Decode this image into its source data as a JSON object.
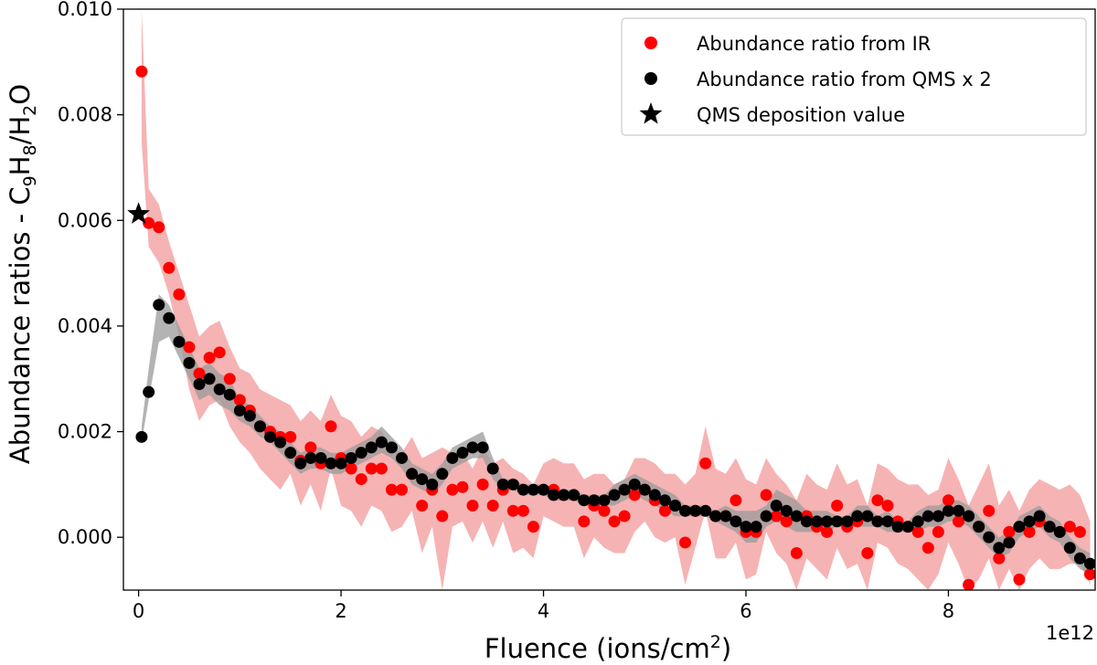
{
  "chart_data": {
    "type": "scatter",
    "title": "",
    "xlabel": "Fluence (ions/cm²)",
    "xlabel_base": "Fluence (ions/cm",
    "xlabel_sup": "2",
    "xlabel_close": ")",
    "ylabel": "Abundance ratios - C9H8/H2O",
    "ylabel_parts": {
      "prefix": "Abundance ratios - C",
      "s1": "9",
      "m1": "H",
      "s2": "8",
      "m2": "/H",
      "s3": "2",
      "suffix": "O"
    },
    "x_multiplier_label": "1e12",
    "xlim": [
      -0.15,
      9.45
    ],
    "ylim": [
      -0.001,
      0.01
    ],
    "xticks": [
      0,
      2,
      4,
      6,
      8
    ],
    "xtick_labels": [
      "0",
      "2",
      "4",
      "6",
      "8"
    ],
    "yticks": [
      0.0,
      0.002,
      0.004,
      0.006,
      0.008,
      0.01
    ],
    "ytick_labels": [
      "0.000",
      "0.002",
      "0.004",
      "0.006",
      "0.008",
      "0.010"
    ],
    "legend_position": "upper right",
    "colors": {
      "ir": "#ff0000",
      "ir_band": "#f4a0a0",
      "qms": "#000000",
      "qms_band": "#999999"
    },
    "series": [
      {
        "name": "Abundance ratio from IR",
        "marker": "circle",
        "color": "#ff0000",
        "x": [
          0.03,
          0.1,
          0.2,
          0.3,
          0.4,
          0.5,
          0.6,
          0.7,
          0.8,
          0.9,
          1.0,
          1.1,
          1.2,
          1.3,
          1.4,
          1.5,
          1.6,
          1.7,
          1.8,
          1.9,
          2.0,
          2.1,
          2.2,
          2.3,
          2.4,
          2.5,
          2.6,
          2.7,
          2.8,
          2.9,
          3.0,
          3.1,
          3.2,
          3.3,
          3.4,
          3.5,
          3.6,
          3.7,
          3.8,
          3.9,
          4.0,
          4.1,
          4.2,
          4.3,
          4.4,
          4.5,
          4.6,
          4.7,
          4.8,
          4.9,
          5.0,
          5.1,
          5.2,
          5.3,
          5.4,
          5.5,
          5.6,
          5.7,
          5.8,
          5.9,
          6.0,
          6.1,
          6.2,
          6.3,
          6.4,
          6.5,
          6.6,
          6.7,
          6.8,
          6.9,
          7.0,
          7.1,
          7.2,
          7.3,
          7.4,
          7.5,
          7.6,
          7.7,
          7.8,
          7.9,
          8.0,
          8.1,
          8.2,
          8.3,
          8.4,
          8.5,
          8.6,
          8.7,
          8.8,
          8.9,
          9.0,
          9.1,
          9.2,
          9.3,
          9.4
        ],
        "y": [
          0.00882,
          0.00595,
          0.00587,
          0.0051,
          0.0046,
          0.0036,
          0.0031,
          0.0034,
          0.0035,
          0.003,
          0.0026,
          0.0024,
          0.0021,
          0.002,
          0.0019,
          0.0019,
          0.00145,
          0.0017,
          0.0014,
          0.0021,
          0.0015,
          0.0013,
          0.0011,
          0.0013,
          0.0013,
          0.0009,
          0.0009,
          0.0012,
          0.0006,
          0.0009,
          0.0004,
          0.0009,
          0.00095,
          0.0006,
          0.001,
          0.0006,
          0.0009,
          0.0005,
          0.0005,
          0.0002,
          0.0009,
          0.0009,
          0.0008,
          0.0008,
          0.0003,
          0.0006,
          0.0005,
          0.0003,
          0.0004,
          0.0008,
          0.0009,
          0.0007,
          0.0005,
          0.0006,
          -0.0001,
          0.0005,
          0.0014,
          0.0004,
          0.0004,
          0.0007,
          0.0001,
          0.0001,
          0.0008,
          0.0004,
          0.0003,
          -0.0003,
          0.0004,
          0.0002,
          0.0001,
          0.0006,
          0.0002,
          0.0003,
          -0.0003,
          0.0007,
          0.0006,
          0.0003,
          0.0002,
          0.0001,
          -0.0002,
          0.0001,
          0.0007,
          0.0003,
          -0.0009,
          0.0002,
          0.0005,
          -0.0004,
          0.0001,
          -0.0008,
          0.0001,
          0.0003,
          0.0002,
          0.0001,
          0.0002,
          0.0001,
          -0.0007
        ]
      },
      {
        "name": "Abundance ratio from QMS x 2",
        "marker": "circle",
        "color": "#000000",
        "x": [
          0.03,
          0.1,
          0.2,
          0.3,
          0.4,
          0.5,
          0.6,
          0.7,
          0.8,
          0.9,
          1.0,
          1.1,
          1.2,
          1.3,
          1.4,
          1.5,
          1.6,
          1.7,
          1.8,
          1.9,
          2.0,
          2.1,
          2.2,
          2.3,
          2.4,
          2.5,
          2.6,
          2.7,
          2.8,
          2.9,
          3.0,
          3.1,
          3.2,
          3.3,
          3.4,
          3.5,
          3.6,
          3.7,
          3.8,
          3.9,
          4.0,
          4.1,
          4.2,
          4.3,
          4.4,
          4.5,
          4.6,
          4.7,
          4.8,
          4.9,
          5.0,
          5.1,
          5.2,
          5.3,
          5.4,
          5.5,
          5.6,
          5.7,
          5.8,
          5.9,
          6.0,
          6.1,
          6.2,
          6.3,
          6.4,
          6.5,
          6.6,
          6.7,
          6.8,
          6.9,
          7.0,
          7.1,
          7.2,
          7.3,
          7.4,
          7.5,
          7.6,
          7.7,
          7.8,
          7.9,
          8.0,
          8.1,
          8.2,
          8.3,
          8.4,
          8.5,
          8.6,
          8.7,
          8.8,
          8.9,
          9.0,
          9.1,
          9.2,
          9.3,
          9.4
        ],
        "y": [
          0.0019,
          0.00275,
          0.0044,
          0.00415,
          0.0037,
          0.0033,
          0.0029,
          0.003,
          0.0028,
          0.0027,
          0.0024,
          0.0023,
          0.0021,
          0.0019,
          0.0018,
          0.0016,
          0.0014,
          0.0015,
          0.0015,
          0.0014,
          0.0014,
          0.0015,
          0.0016,
          0.0017,
          0.0018,
          0.0017,
          0.0015,
          0.0012,
          0.0011,
          0.001,
          0.0012,
          0.0015,
          0.0016,
          0.0017,
          0.0017,
          0.0013,
          0.001,
          0.001,
          0.0009,
          0.0009,
          0.0009,
          0.0008,
          0.0008,
          0.0008,
          0.0007,
          0.0007,
          0.0007,
          0.0008,
          0.0009,
          0.001,
          0.0009,
          0.0008,
          0.0007,
          0.0006,
          0.0005,
          0.0005,
          0.0005,
          0.0004,
          0.0004,
          0.0003,
          0.0002,
          0.0002,
          0.0004,
          0.0006,
          0.0005,
          0.0004,
          0.0003,
          0.0003,
          0.0003,
          0.0003,
          0.0003,
          0.0004,
          0.0004,
          0.0003,
          0.0003,
          0.0002,
          0.0002,
          0.0003,
          0.0004,
          0.0004,
          0.0005,
          0.0005,
          0.0004,
          0.0002,
          0.0,
          -0.0002,
          -0.0001,
          0.0002,
          0.0003,
          0.0004,
          0.0002,
          0.0001,
          -0.0002,
          -0.0004,
          -0.0005
        ],
        "band_lower": [
          0.0018,
          0.0026,
          0.0037,
          0.0038,
          0.0034,
          0.003,
          0.0026,
          0.0027,
          0.0025,
          0.0024,
          0.0022,
          0.0021,
          0.0019,
          0.0018,
          0.0016,
          0.0014,
          0.0012,
          0.0013,
          0.0013,
          0.0012,
          0.0012,
          0.0013,
          0.0014,
          0.0015,
          0.0016,
          0.0015,
          0.0013,
          0.001,
          0.0009,
          0.0008,
          0.001,
          0.0013,
          0.0014,
          0.0015,
          0.0015,
          0.0011,
          0.0009,
          0.0009,
          0.0008,
          0.0008,
          0.0008,
          0.0007,
          0.0007,
          0.0007,
          0.0006,
          0.0006,
          0.0006,
          0.0006,
          0.0007,
          0.0008,
          0.0007,
          0.0006,
          0.0005,
          0.0004,
          0.0004,
          0.0004,
          0.0004,
          0.0003,
          0.0002,
          0.0001,
          -0.0001,
          -0.0001,
          0.0002,
          0.0003,
          0.0002,
          0.0001,
          0.0001,
          0.0001,
          0.0001,
          0.0002,
          0.0002,
          0.0002,
          0.0002,
          0.0002,
          0.0001,
          0.0001,
          0.0001,
          0.0001,
          0.0002,
          0.0002,
          0.0003,
          0.0003,
          0.0002,
          0.0,
          -0.0002,
          -0.0004,
          -0.0003,
          0.0,
          0.0001,
          0.0002,
          0.0,
          -0.0001,
          -0.0004,
          -0.0006,
          -0.0007
        ],
        "band_upper": [
          0.0021,
          0.0032,
          0.0046,
          0.0044,
          0.004,
          0.0036,
          0.0032,
          0.0033,
          0.0031,
          0.003,
          0.0026,
          0.0025,
          0.0023,
          0.0021,
          0.002,
          0.0018,
          0.0016,
          0.0017,
          0.0017,
          0.0016,
          0.0016,
          0.0017,
          0.0018,
          0.0019,
          0.0021,
          0.0019,
          0.0017,
          0.0014,
          0.0013,
          0.0012,
          0.0014,
          0.0017,
          0.0018,
          0.0019,
          0.002,
          0.0015,
          0.0011,
          0.0011,
          0.001,
          0.001,
          0.001,
          0.0009,
          0.0009,
          0.0009,
          0.0008,
          0.0008,
          0.0008,
          0.001,
          0.0011,
          0.0012,
          0.0011,
          0.001,
          0.0009,
          0.0008,
          0.0006,
          0.0006,
          0.0006,
          0.0005,
          0.0006,
          0.0005,
          0.0005,
          0.0005,
          0.0006,
          0.0009,
          0.0008,
          0.0007,
          0.0005,
          0.0005,
          0.0005,
          0.0004,
          0.0004,
          0.0006,
          0.0006,
          0.0004,
          0.0005,
          0.0003,
          0.0003,
          0.0005,
          0.0006,
          0.0006,
          0.0007,
          0.0007,
          0.0006,
          0.0004,
          0.0002,
          0.0,
          0.0001,
          0.0004,
          0.0005,
          0.0006,
          0.0004,
          0.0003,
          0.0,
          -0.0002,
          -0.0003
        ]
      },
      {
        "name": "QMS deposition value",
        "marker": "star",
        "color": "#000000",
        "x": [
          0.0
        ],
        "y": [
          0.00612
        ]
      }
    ],
    "ir_band_lower": [
      0.0075,
      0.0055,
      0.0052,
      0.0046,
      0.0038,
      0.0028,
      0.0022,
      0.0025,
      0.0026,
      0.0021,
      0.0018,
      0.0016,
      0.0013,
      0.0011,
      0.0009,
      0.0012,
      0.0006,
      0.001,
      0.0005,
      0.0013,
      0.0006,
      0.0005,
      0.0002,
      0.0006,
      0.0005,
      0.0001,
      0.0002,
      0.0005,
      -0.0003,
      0.0002,
      -0.001,
      0.0002,
      0.0003,
      -0.0001,
      0.0003,
      -0.0002,
      0.0003,
      -0.0003,
      -0.0002,
      -0.0004,
      0.0004,
      0.0003,
      0.0002,
      0.0002,
      -0.0004,
      0.0,
      -0.0002,
      -0.0003,
      -0.0003,
      0.0001,
      0.0003,
      0.0,
      -0.0001,
      0.0,
      -0.0009,
      -0.0002,
      0.0005,
      -0.0004,
      -0.0004,
      -0.0001,
      -0.0008,
      -0.0007,
      0.0001,
      -0.0003,
      -0.0005,
      -0.001,
      -0.0004,
      -0.0006,
      -0.0008,
      -0.0002,
      -0.0006,
      -0.0005,
      -0.001,
      -0.0001,
      -0.0002,
      -0.0005,
      -0.0006,
      -0.0008,
      -0.001,
      -0.0007,
      -0.0001,
      -0.0005,
      -0.001,
      -0.0008,
      -0.0004,
      -0.001,
      -0.0006,
      -0.001,
      -0.0006,
      -0.0004,
      -0.0006,
      -0.0006,
      -0.0005,
      -0.0005,
      -0.0009
    ],
    "ir_band_upper": [
      0.01,
      0.0066,
      0.0063,
      0.0056,
      0.005,
      0.0044,
      0.0038,
      0.004,
      0.0041,
      0.0036,
      0.0032,
      0.0031,
      0.0028,
      0.0027,
      0.0026,
      0.0025,
      0.0022,
      0.0024,
      0.0022,
      0.0027,
      0.0023,
      0.0022,
      0.0019,
      0.0021,
      0.002,
      0.0017,
      0.0016,
      0.0019,
      0.0015,
      0.0016,
      0.0017,
      0.0016,
      0.0016,
      0.0013,
      0.0017,
      0.0014,
      0.0015,
      0.0013,
      0.0012,
      0.001,
      0.0014,
      0.0015,
      0.0014,
      0.0014,
      0.0011,
      0.0012,
      0.0012,
      0.001,
      0.0011,
      0.0015,
      0.0015,
      0.0014,
      0.0012,
      0.0012,
      0.001,
      0.0012,
      0.0021,
      0.0013,
      0.0012,
      0.0015,
      0.0011,
      0.001,
      0.0015,
      0.0012,
      0.001,
      0.0007,
      0.0012,
      0.001,
      0.0009,
      0.0014,
      0.001,
      0.0011,
      0.0006,
      0.0014,
      0.0013,
      0.0011,
      0.001,
      0.001,
      0.0008,
      0.0009,
      0.0015,
      0.0011,
      0.0006,
      0.001,
      0.0014,
      0.0006,
      0.0009,
      0.0005,
      0.0009,
      0.0011,
      0.001,
      0.0009,
      0.001,
      0.0008,
      0.0003
    ]
  }
}
